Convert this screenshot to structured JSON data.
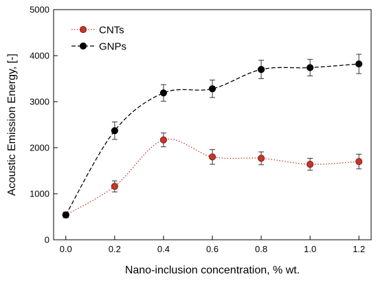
{
  "chart_data": {
    "type": "line",
    "title": "",
    "xlabel": "Nano-inclusion concentration, % wt.",
    "ylabel": "Acoustic Emission Energy, [-]",
    "xlim": [
      -0.05,
      1.25
    ],
    "ylim": [
      0,
      5000
    ],
    "x_ticks": [
      "0.0",
      "0.2",
      "0.4",
      "0.6",
      "0.8",
      "1.0",
      "1.2"
    ],
    "y_ticks": [
      "0",
      "1000",
      "2000",
      "3000",
      "4000",
      "5000"
    ],
    "grid": false,
    "legend_position": "top-left",
    "x": [
      0.0,
      0.2,
      0.4,
      0.6,
      0.8,
      1.0,
      1.2
    ],
    "series": [
      {
        "name": "CNTs",
        "color": "#c0392b",
        "marker_edge": "#8b1a1a",
        "line_style": "dotted",
        "values": [
          540,
          1160,
          2170,
          1800,
          1770,
          1640,
          1700
        ],
        "errors": [
          60,
          120,
          150,
          160,
          140,
          130,
          160
        ]
      },
      {
        "name": "GNPs",
        "color": "#000000",
        "marker_edge": "#000000",
        "line_style": "dashed",
        "values": [
          540,
          2370,
          3190,
          3280,
          3700,
          3740,
          3820
        ],
        "errors": [
          60,
          190,
          180,
          190,
          200,
          180,
          210
        ]
      }
    ]
  }
}
